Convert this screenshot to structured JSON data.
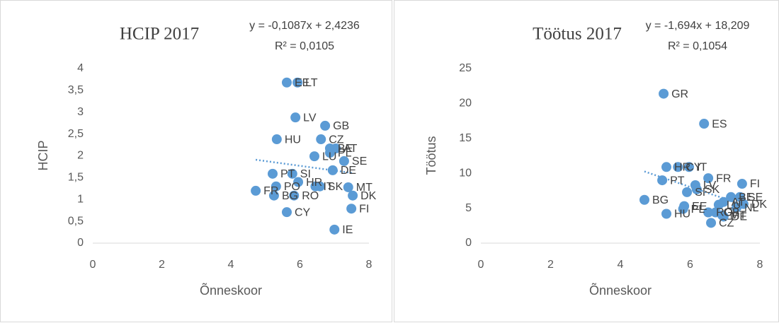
{
  "chart_data": [
    {
      "type": "scatter",
      "title": "HCIP 2017",
      "x_label": "Õnneskoor",
      "y_label": "HCIP",
      "color": "#5b9bd5",
      "x": [
        5.62,
        5.93,
        5.87,
        6.73,
        5.33,
        6.61,
        6.87,
        7.04,
        6.87,
        7.28,
        6.42,
        6.95,
        5.21,
        5.78,
        6.58,
        5.31,
        5.25,
        5.95,
        6.45,
        7.4,
        4.72,
        5.83,
        7.53,
        7.49,
        5.62,
        7.0
      ],
      "values": [
        3.68,
        3.68,
        2.88,
        2.69,
        2.38,
        2.38,
        2.17,
        2.17,
        2.07,
        1.88,
        1.99,
        1.67,
        1.59,
        1.59,
        1.3,
        1.3,
        1.09,
        1.4,
        1.3,
        1.28,
        1.2,
        1.09,
        1.09,
        0.79,
        0.71,
        0.31
      ],
      "point_labels": [
        "EE",
        "LT",
        "LV",
        "GB",
        "HU",
        "CZ",
        "BE",
        "AT",
        "PL",
        "SE",
        "LU",
        "DE",
        "PT",
        "SI",
        "SK",
        "PO",
        "BG",
        "HR",
        "IT",
        "MT",
        "FR",
        "RO",
        "DK",
        "FI",
        "CY",
        "IE"
      ],
      "xlim": [
        0,
        8
      ],
      "xticks": [
        0,
        2,
        4,
        6,
        8
      ],
      "ylim": [
        0,
        4
      ],
      "yticks": [
        0,
        {
          "value": 0.5,
          "label": "0,5"
        },
        1,
        {
          "value": 1.5,
          "label": "1,5"
        },
        2,
        {
          "value": 2.5,
          "label": "2,5"
        },
        3,
        {
          "value": 3.5,
          "label": "3,5"
        },
        4
      ],
      "grid": false,
      "trendline": {
        "slope": -0.1087,
        "intercept": 2.4236,
        "equation": "y = -0,1087x + 2,4236",
        "r2": "R² = 0,0105"
      }
    },
    {
      "type": "scatter",
      "title": "Töötus 2017",
      "x_label": "Õnneskoor",
      "y_label": "Töötus",
      "color": "#5b9bd5",
      "x": [
        5.24,
        6.4,
        5.32,
        5.65,
        5.97,
        6.52,
        7.49,
        5.2,
        6.15,
        6.19,
        5.91,
        7.17,
        7.43,
        6.96,
        7.53,
        7.33,
        4.69,
        5.83,
        6.82,
        5.32,
        5.8,
        6.52,
        6.73,
        6.92,
        6.96,
        6.6
      ],
      "values": [
        21.4,
        17.1,
        10.9,
        10.9,
        10.9,
        9.3,
        8.5,
        9.0,
        8.3,
        7.7,
        7.3,
        6.6,
        6.6,
        5.9,
        5.6,
        5.1,
        6.2,
        5.3,
        5.5,
        4.2,
        4.9,
        4.4,
        4.4,
        4.0,
        3.8,
        2.9
      ],
      "point_labels": [
        "GR",
        "ES",
        "HR",
        "CY",
        "IT",
        "FR",
        "FI",
        "PT",
        "LV",
        "SK",
        "SI",
        "BE",
        "SE",
        "AT",
        "DK",
        "NL",
        "BG",
        "EE",
        "LU",
        "HU",
        "PL",
        "RO",
        "GB",
        "MT",
        "DE",
        "CZ"
      ],
      "xlim": [
        0,
        8
      ],
      "xticks": [
        0,
        2,
        4,
        6,
        8
      ],
      "ylim": [
        0,
        25
      ],
      "yticks": [
        0,
        5,
        10,
        15,
        20,
        25
      ],
      "grid": false,
      "trendline": {
        "slope": -1.694,
        "intercept": 18.209,
        "equation": "y = -1,694x + 18,209",
        "r2": "R² = 0,1054"
      }
    }
  ]
}
